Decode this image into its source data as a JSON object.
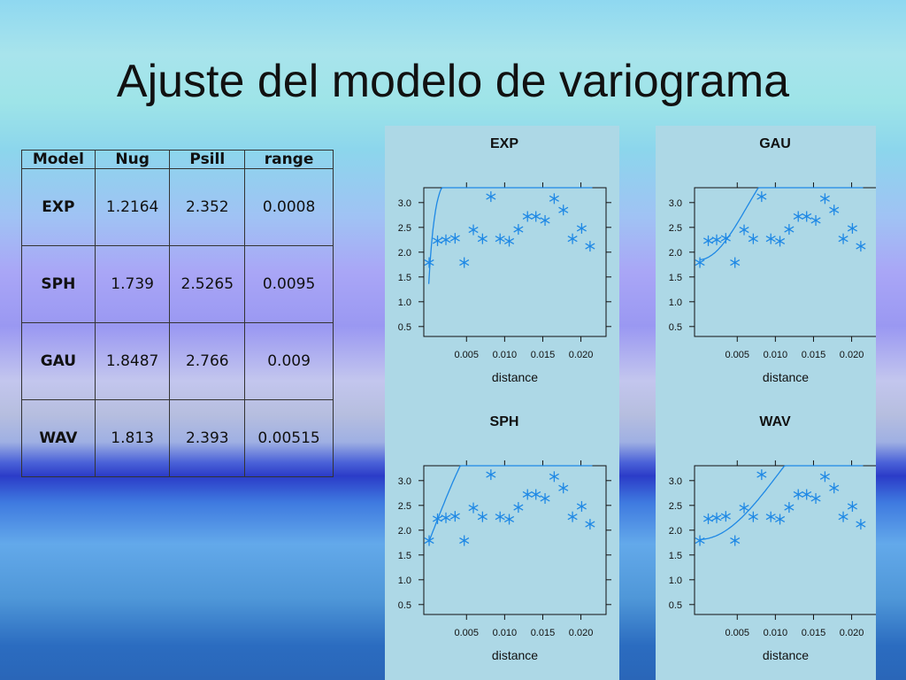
{
  "slide": {
    "title": "Ajuste del modelo de variograma"
  },
  "table": {
    "headers": [
      "Model",
      "Nug",
      "Psill",
      "range"
    ],
    "rows": [
      [
        "EXP",
        "1.2164",
        "2.352",
        "0.0008"
      ],
      [
        "SPH",
        "1.739",
        "2.5265",
        "0.0095"
      ],
      [
        "GAU",
        "1.8487",
        "2.766",
        "0.009"
      ],
      [
        "WAV",
        "1.813",
        "2.393",
        "0.00515"
      ]
    ]
  },
  "colors": {
    "panel_bg": "#add8e6",
    "series": "#1e88e5",
    "axis": "#111111"
  },
  "chart_data": [
    {
      "type": "scatter",
      "title": "EXP",
      "xlabel": "distance",
      "ylabel": "",
      "xlim": [
        -0.0006,
        0.0233
      ],
      "ylim": [
        0.3,
        3.3
      ],
      "x_ticks": [
        "0.005",
        "0.010",
        "0.015",
        "0.020"
      ],
      "y_ticks": [
        "0.5",
        "1.0",
        "1.5",
        "2.0",
        "2.5",
        "3.0"
      ],
      "points": [
        [
          0.0001,
          1.79
        ],
        [
          0.0012,
          2.23
        ],
        [
          0.0023,
          2.25
        ],
        [
          0.0035,
          2.28
        ],
        [
          0.0047,
          1.79
        ],
        [
          0.0059,
          2.45
        ],
        [
          0.0071,
          2.27
        ],
        [
          0.0082,
          3.12
        ],
        [
          0.0094,
          2.27
        ],
        [
          0.0106,
          2.22
        ],
        [
          0.0118,
          2.46
        ],
        [
          0.013,
          2.72
        ],
        [
          0.0141,
          2.72
        ],
        [
          0.0153,
          2.64
        ],
        [
          0.0165,
          3.08
        ],
        [
          0.0177,
          2.85
        ],
        [
          0.0189,
          2.27
        ],
        [
          0.0201,
          2.48
        ],
        [
          0.0212,
          2.12
        ]
      ],
      "fit_model": {
        "type": "Exp",
        "nugget": 1.2164,
        "psill": 2.352,
        "range": 0.0008
      }
    },
    {
      "type": "scatter",
      "title": "GAU",
      "xlabel": "distance",
      "ylabel": "",
      "xlim": [
        -0.0006,
        0.0233
      ],
      "ylim": [
        0.3,
        3.3
      ],
      "x_ticks": [
        "0.005",
        "0.010",
        "0.015",
        "0.020"
      ],
      "y_ticks": [
        "0.5",
        "1.0",
        "1.5",
        "2.0",
        "2.5",
        "3.0"
      ],
      "points": [
        [
          0.0001,
          1.79
        ],
        [
          0.0012,
          2.23
        ],
        [
          0.0023,
          2.25
        ],
        [
          0.0035,
          2.28
        ],
        [
          0.0047,
          1.79
        ],
        [
          0.0059,
          2.45
        ],
        [
          0.0071,
          2.27
        ],
        [
          0.0082,
          3.12
        ],
        [
          0.0094,
          2.27
        ],
        [
          0.0106,
          2.22
        ],
        [
          0.0118,
          2.46
        ],
        [
          0.013,
          2.72
        ],
        [
          0.0141,
          2.72
        ],
        [
          0.0153,
          2.64
        ],
        [
          0.0165,
          3.08
        ],
        [
          0.0177,
          2.85
        ],
        [
          0.0189,
          2.27
        ],
        [
          0.0201,
          2.48
        ],
        [
          0.0212,
          2.12
        ]
      ],
      "fit_model": {
        "type": "Gau",
        "nugget": 1.8487,
        "psill": 2.766,
        "range": 0.009
      }
    },
    {
      "type": "scatter",
      "title": "SPH",
      "xlabel": "distance",
      "ylabel": "",
      "xlim": [
        -0.0006,
        0.0233
      ],
      "ylim": [
        0.3,
        3.3
      ],
      "x_ticks": [
        "0.005",
        "0.010",
        "0.015",
        "0.020"
      ],
      "y_ticks": [
        "0.5",
        "1.0",
        "1.5",
        "2.0",
        "2.5",
        "3.0"
      ],
      "points": [
        [
          0.0001,
          1.79
        ],
        [
          0.0012,
          2.23
        ],
        [
          0.0023,
          2.25
        ],
        [
          0.0035,
          2.28
        ],
        [
          0.0047,
          1.79
        ],
        [
          0.0059,
          2.45
        ],
        [
          0.0071,
          2.27
        ],
        [
          0.0082,
          3.12
        ],
        [
          0.0094,
          2.27
        ],
        [
          0.0106,
          2.22
        ],
        [
          0.0118,
          2.46
        ],
        [
          0.013,
          2.72
        ],
        [
          0.0141,
          2.72
        ],
        [
          0.0153,
          2.64
        ],
        [
          0.0165,
          3.08
        ],
        [
          0.0177,
          2.85
        ],
        [
          0.0189,
          2.27
        ],
        [
          0.0201,
          2.48
        ],
        [
          0.0212,
          2.12
        ]
      ],
      "fit_model": {
        "type": "Sph",
        "nugget": 1.739,
        "psill": 2.5265,
        "range": 0.0095
      }
    },
    {
      "type": "scatter",
      "title": "WAV",
      "xlabel": "distance",
      "ylabel": "",
      "xlim": [
        -0.0006,
        0.0233
      ],
      "ylim": [
        0.3,
        3.3
      ],
      "x_ticks": [
        "0.005",
        "0.010",
        "0.015",
        "0.020"
      ],
      "y_ticks": [
        "0.5",
        "1.0",
        "1.5",
        "2.0",
        "2.5",
        "3.0"
      ],
      "points": [
        [
          0.0001,
          1.79
        ],
        [
          0.0012,
          2.23
        ],
        [
          0.0023,
          2.25
        ],
        [
          0.0035,
          2.28
        ],
        [
          0.0047,
          1.79
        ],
        [
          0.0059,
          2.45
        ],
        [
          0.0071,
          2.27
        ],
        [
          0.0082,
          3.12
        ],
        [
          0.0094,
          2.27
        ],
        [
          0.0106,
          2.22
        ],
        [
          0.0118,
          2.46
        ],
        [
          0.013,
          2.72
        ],
        [
          0.0141,
          2.72
        ],
        [
          0.0153,
          2.64
        ],
        [
          0.0165,
          3.08
        ],
        [
          0.0177,
          2.85
        ],
        [
          0.0189,
          2.27
        ],
        [
          0.0201,
          2.48
        ],
        [
          0.0212,
          2.12
        ]
      ],
      "fit_model": {
        "type": "Wav",
        "nugget": 1.813,
        "psill": 2.393,
        "range": 0.00515
      }
    }
  ]
}
